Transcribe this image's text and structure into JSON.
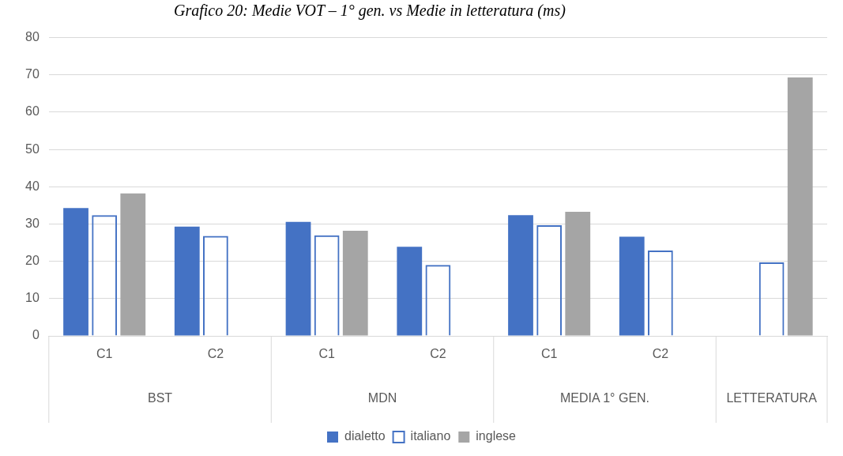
{
  "chart_data": {
    "type": "bar",
    "title": "Grafico 20: Medie VOT – 1° gen. vs Medie in letteratura (ms)",
    "categories": [
      "C1",
      "C2",
      "C1",
      "C2",
      "C1",
      "C2",
      null
    ],
    "series": [
      {
        "name": "dialetto",
        "color": "#4472c4",
        "values": [
          34.3,
          29.3,
          30.6,
          23.9,
          32.4,
          26.6,
          null
        ]
      },
      {
        "name": "italiano",
        "color": "#4472c4",
        "values": [
          32.4,
          26.8,
          27.0,
          19.0,
          29.7,
          22.9,
          19.7
        ]
      },
      {
        "name": "inglese",
        "color": "#a5a5a5",
        "values": [
          38.2,
          null,
          28.2,
          null,
          33.3,
          null,
          69.3
        ]
      }
    ],
    "annotations": [
      "BST",
      "MDN",
      "MEDIA 1° GEN.",
      "LETTERATURA"
    ],
    "ylim": [
      0,
      80
    ],
    "yticks": [
      0,
      10,
      20,
      30,
      40,
      50,
      60,
      70,
      80
    ],
    "grid": "y",
    "legend": "bottom"
  }
}
